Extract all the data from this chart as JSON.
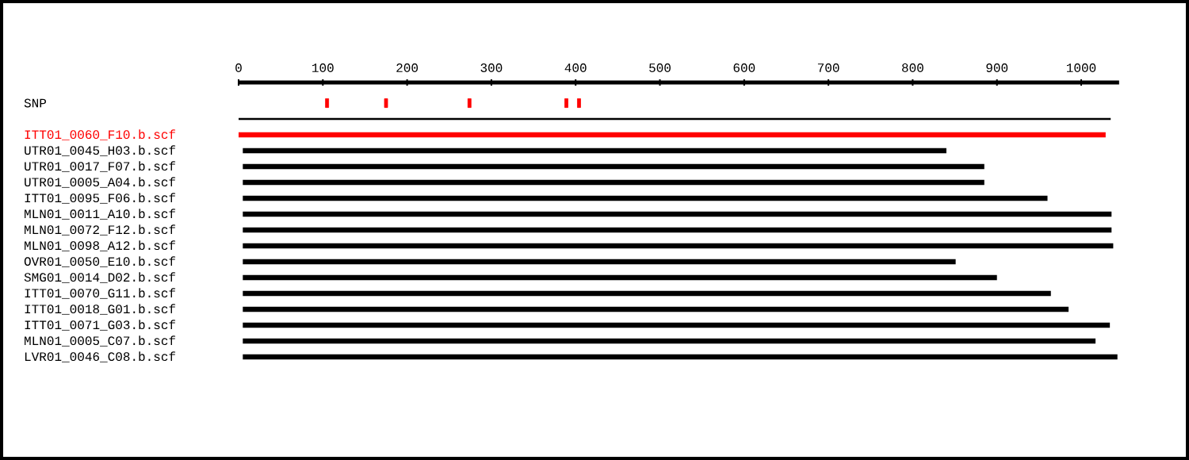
{
  "chart_data": {
    "type": "bar",
    "orientation": "horizontal",
    "categories": [
      "SNP",
      null,
      "ITT01_0060_F10.b.scf",
      "UTR01_0045_H03.b.scf",
      "UTR01_0017_F07.b.scf",
      "UTR01_0005_A04.b.scf",
      "ITT01_0095_F06.b.scf",
      "MLN01_0011_A10.b.scf",
      "MLN01_0072_F12.b.scf",
      "MLN01_0098_A12.b.scf",
      "OVR01_0050_E10.b.scf",
      "SMG01_0014_D02.b.scf",
      "ITT01_0070_G11.b.scf",
      "ITT01_0018_G01.b.scf",
      "ITT01_0071_G03.b.scf",
      "MLN01_0005_C07.b.scf",
      "LVR01_0046_C08.b.scf"
    ],
    "xlim": [
      0,
      1045
    ],
    "xticks": [
      0,
      100,
      200,
      300,
      400,
      500,
      600,
      700,
      800,
      900,
      1000
    ],
    "series": [
      {
        "values": [
          null,
          1035,
          1029,
          835,
          880,
          880,
          955,
          1031,
          1031,
          1033,
          846,
          895,
          959,
          980,
          1029,
          1012,
          1038
        ],
        "base": [
          null,
          0,
          0,
          5,
          5,
          5,
          5,
          5,
          5,
          5,
          5,
          5,
          5,
          5,
          5,
          5,
          5
        ],
        "colors": [
          null,
          "#000000",
          "#ff0000",
          "#000000",
          "#000000",
          "#000000",
          "#000000",
          "#000000",
          "#000000",
          "#000000",
          "#000000",
          "#000000",
          "#000000",
          "#000000",
          "#000000",
          "#000000",
          "#000000"
        ]
      },
      {
        "type": "scatter",
        "color": "#ff0000",
        "marker": "square",
        "values": [
          105,
          null,
          null,
          null,
          null,
          null,
          null,
          null,
          null,
          null,
          null,
          null,
          null,
          null,
          null,
          null,
          null
        ]
      },
      {
        "type": "scatter",
        "color": "#ff0000",
        "marker": "square",
        "values": [
          175,
          null,
          null,
          null,
          null,
          null,
          null,
          null,
          null,
          null,
          null,
          null,
          null,
          null,
          null,
          null,
          null
        ]
      },
      {
        "type": "scatter",
        "color": "#ff0000",
        "marker": "square",
        "values": [
          274,
          null,
          null,
          null,
          null,
          null,
          null,
          null,
          null,
          null,
          null,
          null,
          null,
          null,
          null,
          null,
          null
        ]
      },
      {
        "type": "scatter",
        "color": "#ff0000",
        "marker": "square",
        "values": [
          389,
          null,
          null,
          null,
          null,
          null,
          null,
          null,
          null,
          null,
          null,
          null,
          null,
          null,
          null,
          null,
          null
        ]
      },
      {
        "type": "scatter",
        "color": "#ff0000",
        "marker": "square",
        "values": [
          404,
          null,
          null,
          null,
          null,
          null,
          null,
          null,
          null,
          null,
          null,
          null,
          null,
          null,
          null,
          null,
          null
        ]
      }
    ]
  }
}
